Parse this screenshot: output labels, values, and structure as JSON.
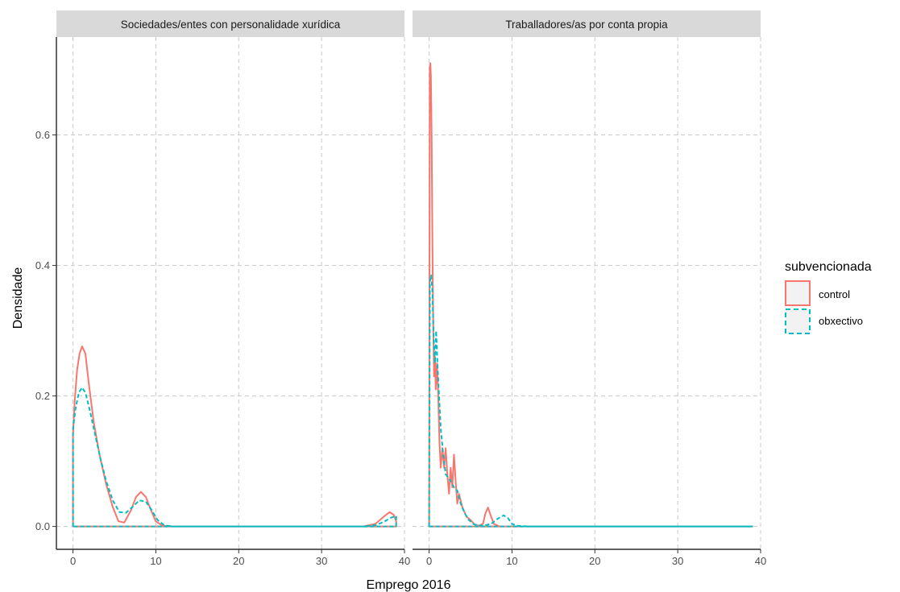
{
  "chart_data": {
    "type": "line",
    "xlabel": "Emprego 2016",
    "ylabel": "Densidade",
    "xlim": [
      -2,
      40
    ],
    "ylim": [
      -0.035,
      0.75
    ],
    "x_ticks": [
      0,
      10,
      20,
      30,
      40
    ],
    "y_ticks": [
      0.0,
      0.2,
      0.4,
      0.6
    ],
    "grid": true,
    "legend": {
      "title": "subvencionada",
      "position": "right",
      "entries": [
        {
          "label": "control",
          "color": "#F8766D",
          "linetype": "solid"
        },
        {
          "label": "obxectivo",
          "color": "#00BFC4",
          "linetype": "dashed"
        }
      ]
    },
    "panels": [
      {
        "title": "Sociedades/entes con personalidade xurídica",
        "series": [
          {
            "name": "control",
            "x": [
              0,
              0.2,
              0.5,
              0.8,
              1.1,
              1.5,
              1.9,
              2.5,
              3.2,
              4.0,
              4.8,
              5.5,
              6.2,
              7.0,
              7.6,
              8.2,
              8.8,
              9.4,
              10.0,
              10.8,
              12,
              20,
              30,
              35,
              36.5,
              37.5,
              38.2,
              38.7,
              39
            ],
            "y": [
              0.14,
              0.19,
              0.24,
              0.265,
              0.276,
              0.265,
              0.22,
              0.16,
              0.11,
              0.065,
              0.03,
              0.008,
              0.006,
              0.025,
              0.045,
              0.053,
              0.045,
              0.025,
              0.008,
              0.001,
              0,
              0,
              0,
              0,
              0.004,
              0.015,
              0.022,
              0.018,
              0.008
            ]
          },
          {
            "name": "obxectivo",
            "x": [
              0,
              0.3,
              0.7,
              1.1,
              1.5,
              2.0,
              2.6,
              3.3,
              4.0,
              4.8,
              5.6,
              6.4,
              7.2,
              8.0,
              8.8,
              9.5,
              10.2,
              11.0,
              12,
              20,
              30,
              35,
              36.5,
              37.5,
              38.3,
              38.9,
              39
            ],
            "y": [
              0.15,
              0.18,
              0.205,
              0.213,
              0.205,
              0.18,
              0.145,
              0.105,
              0.07,
              0.04,
              0.022,
              0.021,
              0.03,
              0.04,
              0.038,
              0.025,
              0.01,
              0.002,
              0,
              0,
              0,
              0,
              0.002,
              0.007,
              0.013,
              0.016,
              0.016
            ]
          }
        ]
      },
      {
        "title": "Traballadores/as por conta propia",
        "series": [
          {
            "name": "control",
            "x": [
              0,
              0.08,
              0.15,
              0.22,
              0.3,
              0.4,
              0.5,
              0.6,
              0.7,
              0.8,
              0.95,
              1.1,
              1.25,
              1.4,
              1.6,
              1.8,
              2.0,
              2.2,
              2.4,
              2.6,
              2.8,
              3.0,
              3.2,
              3.4,
              3.6,
              4.0,
              4.5,
              5.0,
              5.5,
              6.0,
              6.5,
              6.8,
              7.1,
              7.4,
              7.8,
              8.5,
              10,
              20,
              30,
              39
            ],
            "y": [
              0,
              0.7,
              0.71,
              0.69,
              0.6,
              0.43,
              0.31,
              0.23,
              0.26,
              0.21,
              0.25,
              0.2,
              0.13,
              0.09,
              0.12,
              0.09,
              0.12,
              0.08,
              0.05,
              0.09,
              0.06,
              0.11,
              0.07,
              0.035,
              0.05,
              0.03,
              0.015,
              0.01,
              0.003,
              0.001,
              0.004,
              0.02,
              0.029,
              0.018,
              0.004,
              0,
              0,
              0,
              0,
              0
            ]
          },
          {
            "name": "obxectivo",
            "x": [
              0,
              0.1,
              0.25,
              0.4,
              0.55,
              0.7,
              0.85,
              1.0,
              1.2,
              1.4,
              1.7,
              2.0,
              2.3,
              2.6,
              3.0,
              3.4,
              3.8,
              4.3,
              4.8,
              5.3,
              5.8,
              6.5,
              7.5,
              8.3,
              9.0,
              9.5,
              10.0,
              10.6,
              12,
              20,
              30,
              39
            ],
            "y": [
              0,
              0.375,
              0.385,
              0.36,
              0.29,
              0.25,
              0.3,
              0.25,
              0.2,
              0.15,
              0.11,
              0.08,
              0.075,
              0.07,
              0.06,
              0.055,
              0.035,
              0.02,
              0.01,
              0.004,
              0.002,
              0.001,
              0.004,
              0.012,
              0.017,
              0.013,
              0.004,
              0.001,
              0,
              0,
              0,
              0
            ]
          }
        ]
      }
    ]
  }
}
